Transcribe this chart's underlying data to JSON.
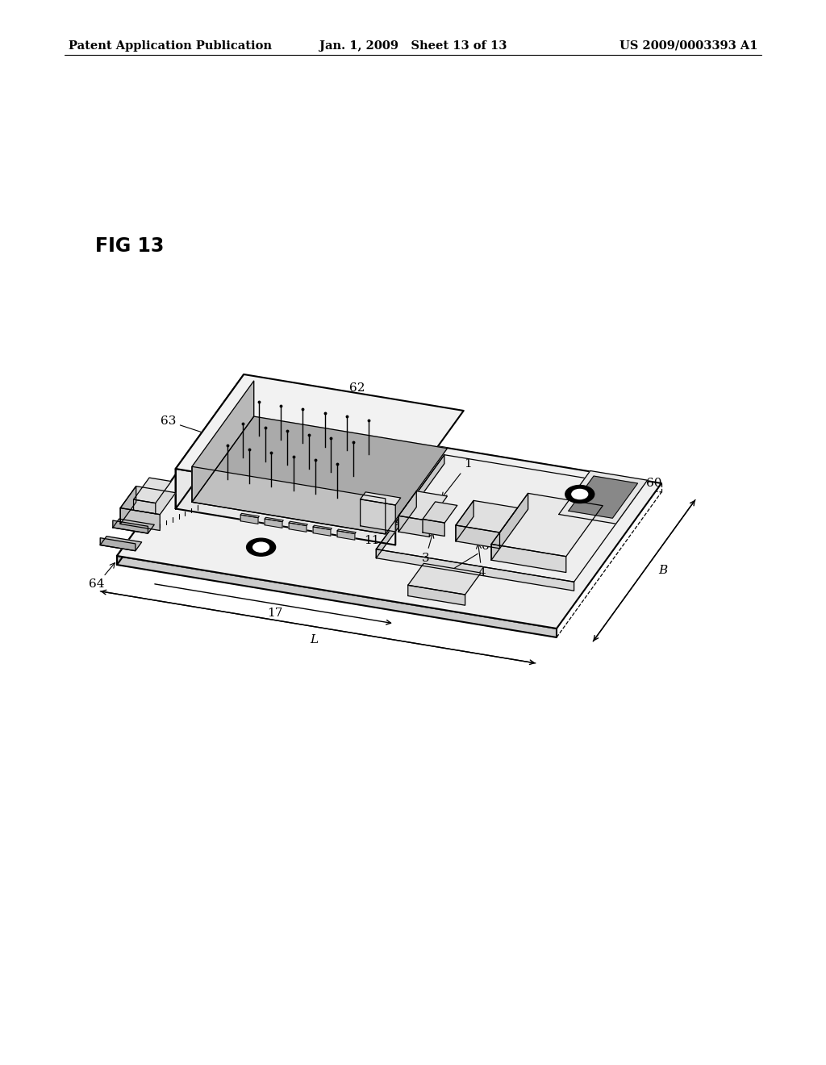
{
  "header_left": "Patent Application Publication",
  "header_center": "Jan. 1, 2009   Sheet 13 of 13",
  "header_right": "US 2009/0003393 A1",
  "fig_label": "FIG 13",
  "bg_color": "#ffffff",
  "line_color": "#000000",
  "header_fontsize": 10.5,
  "fig_label_fontsize": 17,
  "label_fontsize": 11
}
